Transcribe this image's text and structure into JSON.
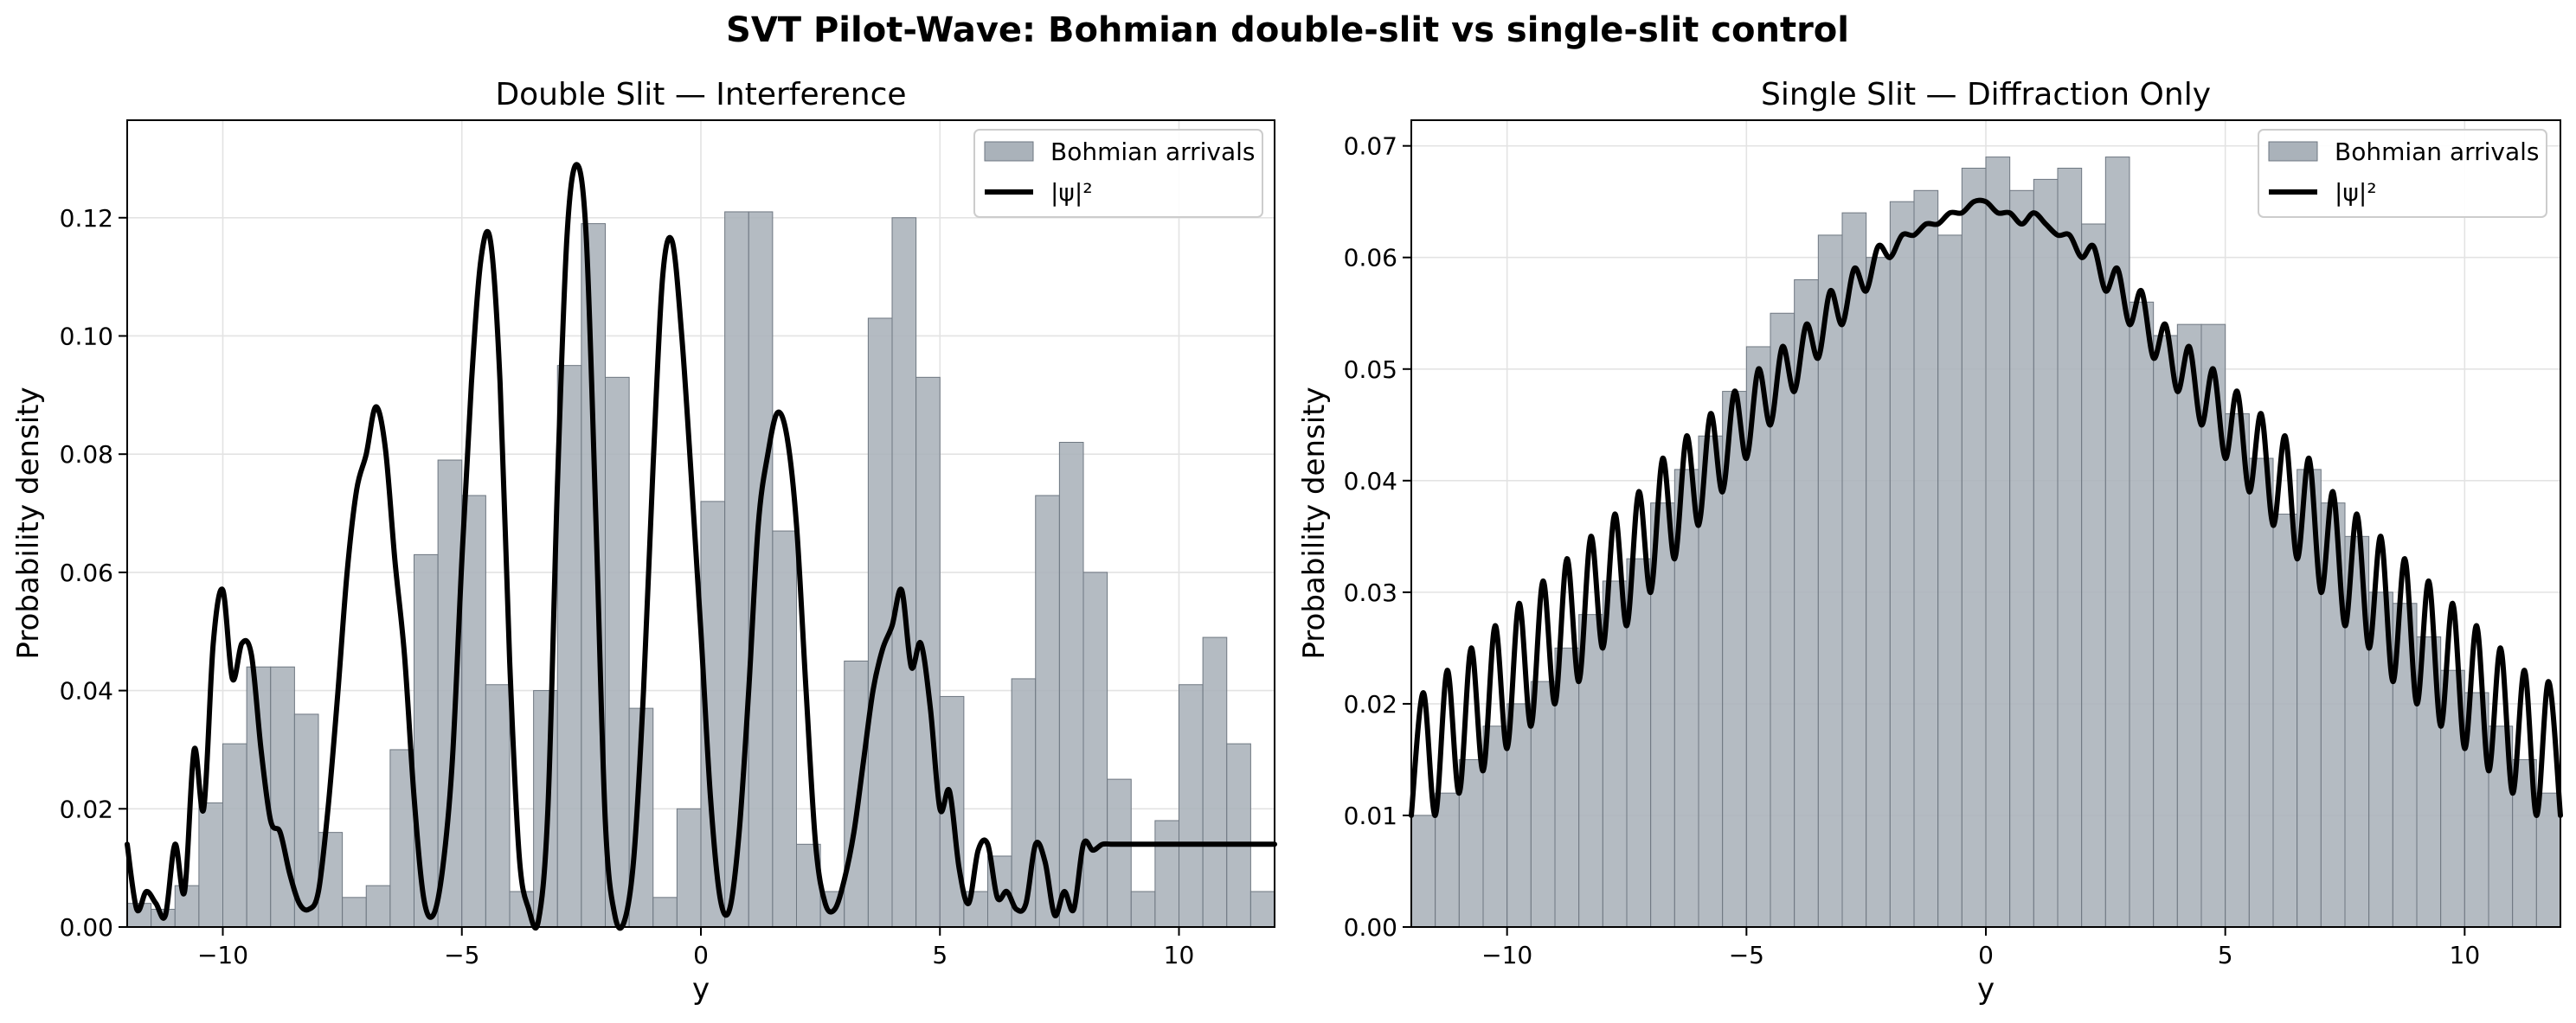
{
  "figure": {
    "title": "SVT Pilot-Wave: Bohmian double-slit vs single-slit control"
  },
  "chart_data": [
    {
      "type": "bar",
      "title": "Double Slit — Interference",
      "xlabel": "y",
      "ylabel": "Probability density",
      "xlim": [
        -12,
        12
      ],
      "ylim": [
        0,
        0.1365
      ],
      "grid": true,
      "legend_position": "top-right",
      "xticks": [
        -10,
        -5,
        0,
        5,
        10
      ],
      "xtick_labels": [
        "−10",
        "−5",
        "0",
        "5",
        "10"
      ],
      "yticks": [
        0,
        0.02,
        0.04,
        0.06,
        0.08,
        0.1,
        0.12
      ],
      "ytick_labels": [
        "0.00",
        "0.02",
        "0.04",
        "0.06",
        "0.08",
        "0.10",
        "0.12"
      ],
      "series": [
        {
          "name": "Bohmian arrivals",
          "kind": "histogram",
          "color": "#aab2ba",
          "bin_edges": [
            -12,
            -11.5,
            -11,
            -10.5,
            -10,
            -9.5,
            -9,
            -8.5,
            -8,
            -7.5,
            -7,
            -6.5,
            -6,
            -5.5,
            -5,
            -4.5,
            -4,
            -3.5,
            -3,
            -2.5,
            -2,
            -1.5,
            -1,
            -0.5,
            0,
            0.5,
            1,
            1.5,
            2,
            2.5,
            3,
            3.5,
            4,
            4.5,
            5,
            5.5,
            6,
            6.5,
            7,
            7.5,
            8,
            8.5,
            9,
            9.5,
            10,
            10.5,
            11,
            11.5,
            12
          ],
          "values": [
            0.004,
            0.003,
            0.007,
            0.021,
            0.031,
            0.044,
            0.044,
            0.036,
            0.016,
            0.005,
            0.007,
            0.03,
            0.063,
            0.079,
            0.073,
            0.041,
            0.006,
            0.04,
            0.095,
            0.119,
            0.093,
            0.037,
            0.005,
            0.02,
            0.072,
            0.121,
            0.121,
            0.067,
            0.014,
            0.006,
            0.045,
            0.103,
            0.12,
            0.093,
            0.039,
            0.006,
            0.012,
            0.042,
            0.073,
            0.082,
            0.06,
            0.025,
            0.006,
            0.018,
            0.041,
            0.049,
            0.031,
            0.006
          ]
        },
        {
          "name": "|ψ|²",
          "kind": "line",
          "color": "#000000",
          "x": [
            -12,
            -11.8,
            -11.6,
            -11.4,
            -11.2,
            -11,
            -10.8,
            -10.6,
            -10.4,
            -10.2,
            -10,
            -9.8,
            -9.6,
            -9.4,
            -9.2,
            -9,
            -8.8,
            -8.6,
            -8.4,
            -8.2,
            -8,
            -7.8,
            -7.6,
            -7.4,
            -7.2,
            -7,
            -6.8,
            -6.6,
            -6.4,
            -6.2,
            -6,
            -5.8,
            -5.6,
            -5.4,
            -5.2,
            -5,
            -4.8,
            -4.6,
            -4.4,
            -4.2,
            -4,
            -3.8,
            -3.6,
            -3.4,
            -3.2,
            -3,
            -2.8,
            -2.6,
            -2.4,
            -2.2,
            -2,
            -1.8,
            -1.6,
            -1.4,
            -1.2,
            -1,
            -0.8,
            -0.6,
            -0.4,
            -0.2,
            0,
            0.2,
            0.4,
            0.6,
            0.8,
            1,
            1.2,
            1.4,
            1.6,
            1.8,
            2,
            2.2,
            2.4,
            2.6,
            2.8,
            3,
            3.2,
            3.4,
            3.6,
            3.8,
            4,
            4.2,
            4.4,
            4.6,
            4.8,
            5,
            5.2,
            5.4,
            5.6,
            5.8,
            6,
            6.2,
            6.4,
            6.6,
            6.8,
            7,
            7.2,
            7.4,
            7.6,
            7.8,
            8,
            8.2,
            8.4,
            8.6,
            8.8,
            9,
            9.2,
            9.4,
            9.6,
            9.8,
            10,
            10.2,
            10.4,
            10.6,
            10.8,
            11,
            11.2,
            11.4,
            11.6,
            11.8,
            12
          ],
          "y": [
            0.014,
            0.003,
            0.006,
            0.004,
            0.002,
            0.014,
            0.006,
            0.03,
            0.02,
            0.048,
            0.057,
            0.042,
            0.048,
            0.046,
            0.03,
            0.018,
            0.016,
            0.009,
            0.004,
            0.003,
            0.006,
            0.02,
            0.039,
            0.06,
            0.074,
            0.08,
            0.088,
            0.081,
            0.062,
            0.046,
            0.022,
            0.005,
            0.002,
            0.01,
            0.028,
            0.062,
            0.092,
            0.113,
            0.116,
            0.092,
            0.045,
            0.012,
            0.003,
            0.001,
            0.02,
            0.075,
            0.117,
            0.129,
            0.117,
            0.07,
            0.018,
            0.002,
            0.001,
            0.012,
            0.04,
            0.078,
            0.11,
            0.116,
            0.1,
            0.076,
            0.05,
            0.022,
            0.005,
            0.003,
            0.016,
            0.04,
            0.068,
            0.08,
            0.087,
            0.083,
            0.068,
            0.04,
            0.014,
            0.004,
            0.003,
            0.008,
            0.016,
            0.028,
            0.04,
            0.047,
            0.051,
            0.057,
            0.044,
            0.048,
            0.037,
            0.02,
            0.023,
            0.01,
            0.004,
            0.013,
            0.014,
            0.005,
            0.006,
            0.003,
            0.004,
            0.014,
            0.011,
            0.002,
            0.006,
            0.003,
            0.014,
            0.013,
            0.014,
            0.014,
            0.014,
            0.014,
            0.014,
            0.014,
            0.014,
            0.014,
            0.014,
            0.014,
            0.014,
            0.014,
            0.014,
            0.014,
            0.014,
            0.014,
            0.014,
            0.014,
            0.014
          ]
        }
      ]
    },
    {
      "type": "bar",
      "title": "Single Slit — Diffraction Only",
      "xlabel": "y",
      "ylabel": "Probability density",
      "xlim": [
        -12,
        12
      ],
      "ylim": [
        0,
        0.0723
      ],
      "grid": true,
      "legend_position": "top-right",
      "xticks": [
        -10,
        -5,
        0,
        5,
        10
      ],
      "xtick_labels": [
        "−10",
        "−5",
        "0",
        "5",
        "10"
      ],
      "yticks": [
        0,
        0.01,
        0.02,
        0.03,
        0.04,
        0.05,
        0.06,
        0.07
      ],
      "ytick_labels": [
        "0.00",
        "0.01",
        "0.02",
        "0.03",
        "0.04",
        "0.05",
        "0.06",
        "0.07"
      ],
      "series": [
        {
          "name": "Bohmian arrivals",
          "kind": "histogram",
          "color": "#aab2ba",
          "bin_edges": [
            -12,
            -11.5,
            -11,
            -10.5,
            -10,
            -9.5,
            -9,
            -8.5,
            -8,
            -7.5,
            -7,
            -6.5,
            -6,
            -5.5,
            -5,
            -4.5,
            -4,
            -3.5,
            -3,
            -2.5,
            -2,
            -1.5,
            -1,
            -0.5,
            0,
            0.5,
            1,
            1.5,
            2,
            2.5,
            3,
            3.5,
            4,
            4.5,
            5,
            5.5,
            6,
            6.5,
            7,
            7.5,
            8,
            8.5,
            9,
            9.5,
            10,
            10.5,
            11,
            11.5,
            12
          ],
          "values": [
            0.01,
            0.012,
            0.015,
            0.018,
            0.02,
            0.022,
            0.025,
            0.028,
            0.031,
            0.033,
            0.038,
            0.041,
            0.044,
            0.048,
            0.052,
            0.055,
            0.058,
            0.062,
            0.064,
            0.06,
            0.065,
            0.066,
            0.062,
            0.068,
            0.069,
            0.066,
            0.067,
            0.068,
            0.063,
            0.069,
            0.056,
            0.053,
            0.054,
            0.054,
            0.046,
            0.042,
            0.037,
            0.041,
            0.038,
            0.035,
            0.03,
            0.029,
            0.026,
            0.023,
            0.021,
            0.018,
            0.015,
            0.012
          ]
        },
        {
          "name": "|ψ|²",
          "kind": "line",
          "color": "#000000",
          "x": [
            -12,
            -11.75,
            -11.5,
            -11.25,
            -11,
            -10.75,
            -10.5,
            -10.25,
            -10,
            -9.75,
            -9.5,
            -9.25,
            -9,
            -8.75,
            -8.5,
            -8.25,
            -8,
            -7.75,
            -7.5,
            -7.25,
            -7,
            -6.75,
            -6.5,
            -6.25,
            -6,
            -5.75,
            -5.5,
            -5.25,
            -5,
            -4.75,
            -4.5,
            -4.25,
            -4,
            -3.75,
            -3.5,
            -3.25,
            -3,
            -2.75,
            -2.5,
            -2.25,
            -2,
            -1.75,
            -1.5,
            -1.25,
            -1,
            -0.75,
            -0.5,
            -0.25,
            0,
            0.25,
            0.5,
            0.75,
            1,
            1.25,
            1.5,
            1.75,
            2,
            2.25,
            2.5,
            2.75,
            3,
            3.25,
            3.5,
            3.75,
            4,
            4.25,
            4.5,
            4.75,
            5,
            5.25,
            5.5,
            5.75,
            6,
            6.25,
            6.5,
            6.75,
            7,
            7.25,
            7.5,
            7.75,
            8,
            8.25,
            8.5,
            8.75,
            9,
            9.25,
            9.5,
            9.75,
            10,
            10.25,
            10.5,
            10.75,
            11,
            11.25,
            11.5,
            11.75,
            12
          ],
          "y": [
            0.01,
            0.021,
            0.01,
            0.023,
            0.012,
            0.025,
            0.014,
            0.027,
            0.016,
            0.029,
            0.018,
            0.031,
            0.02,
            0.033,
            0.022,
            0.035,
            0.025,
            0.037,
            0.027,
            0.039,
            0.03,
            0.042,
            0.033,
            0.044,
            0.036,
            0.046,
            0.039,
            0.048,
            0.042,
            0.05,
            0.045,
            0.052,
            0.048,
            0.054,
            0.051,
            0.057,
            0.054,
            0.059,
            0.057,
            0.061,
            0.06,
            0.062,
            0.062,
            0.063,
            0.063,
            0.064,
            0.064,
            0.065,
            0.065,
            0.064,
            0.064,
            0.063,
            0.064,
            0.063,
            0.062,
            0.062,
            0.06,
            0.061,
            0.057,
            0.059,
            0.054,
            0.057,
            0.051,
            0.054,
            0.048,
            0.052,
            0.045,
            0.05,
            0.042,
            0.048,
            0.039,
            0.046,
            0.036,
            0.044,
            0.033,
            0.042,
            0.03,
            0.039,
            0.027,
            0.037,
            0.025,
            0.035,
            0.022,
            0.033,
            0.02,
            0.031,
            0.018,
            0.029,
            0.016,
            0.027,
            0.014,
            0.025,
            0.012,
            0.023,
            0.01,
            0.022,
            0.01
          ]
        }
      ]
    }
  ]
}
